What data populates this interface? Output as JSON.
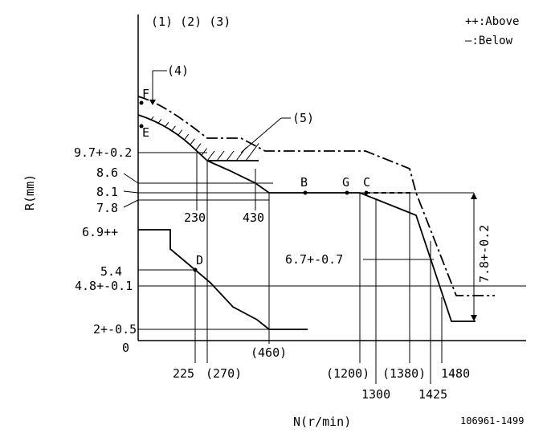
{
  "header": {
    "refs": "(1) (2) (3)",
    "legend_above": "++:Above",
    "legend_below": "—:Below"
  },
  "axes": {
    "y_label": "R(mm)",
    "x_label": "N(r/min)",
    "origin": "0"
  },
  "y_marks": [
    "9.7+-0.2",
    "8.6",
    "8.1",
    "7.8",
    "6.9++",
    "5.4",
    "4.8+-0.1",
    "2+-0.5"
  ],
  "x_marks_top": [
    "230",
    "430"
  ],
  "x_marks_bottom": [
    "225",
    "(270)",
    "(460)",
    "(1200)",
    "1300",
    "(1380)",
    "1425",
    "1480"
  ],
  "points": [
    "F",
    "E",
    "B",
    "G",
    "C",
    "D"
  ],
  "callouts": [
    "(4)",
    "(5)",
    "6.7+-0.7",
    "7.8+-0.2"
  ],
  "figure_id": "106961-1499"
}
